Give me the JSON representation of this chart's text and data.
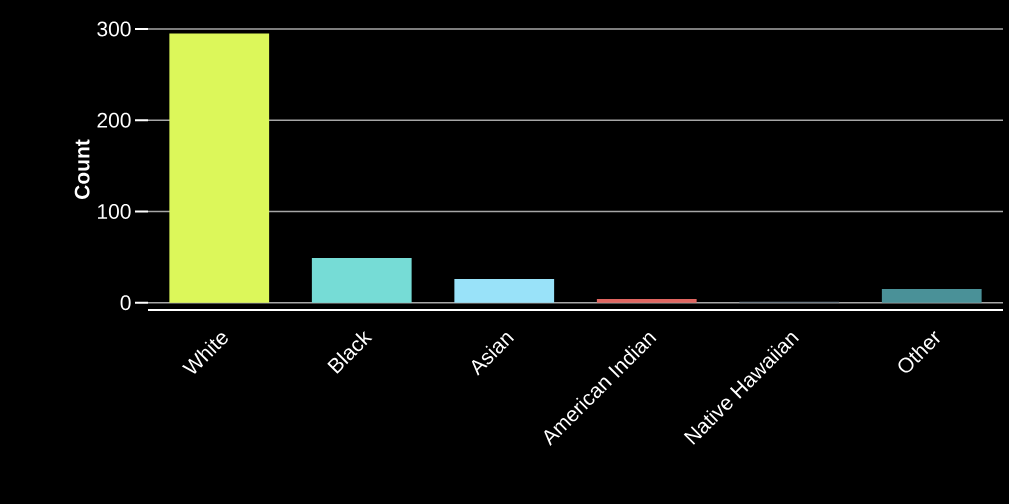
{
  "chart_data": {
    "type": "bar",
    "ylabel": "Count",
    "categories": [
      "White",
      "Black",
      "Asian",
      "American Indian",
      "Native Hawaiian",
      "Other"
    ],
    "values": [
      295,
      49,
      26,
      4,
      1,
      15
    ],
    "colors": [
      "#dcf75a",
      "#76dcd6",
      "#99e2f9",
      "#e06661",
      "#5b6b78",
      "#4a9198"
    ],
    "ylim": [
      -8,
      300
    ],
    "yticks": [
      0,
      100,
      200,
      300
    ],
    "grid": "y"
  }
}
